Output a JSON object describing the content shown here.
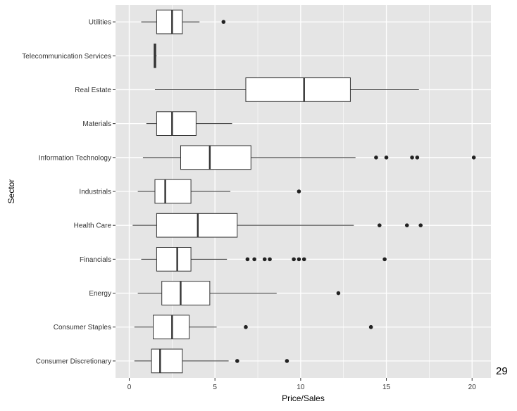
{
  "page": {
    "number": "29"
  },
  "chart_data": {
    "type": "boxplot",
    "orientation": "horizontal",
    "title": "",
    "xlabel": "Price/Sales",
    "ylabel": "Sector",
    "xlim": [
      -0.8,
      21.1
    ],
    "xticks": [
      0,
      5,
      10,
      15,
      20
    ],
    "grid": true,
    "panel_background": "#e5e5e5",
    "grid_color": "#ffffff",
    "box_fill": "#ffffff",
    "line_color": "#333333",
    "outlier_color": "#222222",
    "categories": [
      {
        "name": "Utilities",
        "whisker_low": 0.7,
        "q1": 1.6,
        "median": 2.5,
        "q3": 3.1,
        "whisker_high": 4.1,
        "outliers": [
          5.5
        ]
      },
      {
        "name": "Telecommunication Services",
        "whisker_low": 1.45,
        "q1": 1.45,
        "median": 1.5,
        "q3": 1.55,
        "whisker_high": 1.6,
        "outliers": []
      },
      {
        "name": "Real Estate",
        "whisker_low": 1.5,
        "q1": 6.8,
        "median": 10.2,
        "q3": 12.9,
        "whisker_high": 16.9,
        "outliers": []
      },
      {
        "name": "Materials",
        "whisker_low": 1.0,
        "q1": 1.6,
        "median": 2.5,
        "q3": 3.9,
        "whisker_high": 6.0,
        "outliers": []
      },
      {
        "name": "Information Technology",
        "whisker_low": 0.8,
        "q1": 3.0,
        "median": 4.7,
        "q3": 7.1,
        "whisker_high": 13.2,
        "outliers": [
          14.4,
          15.0,
          16.5,
          16.8,
          20.1
        ]
      },
      {
        "name": "Industrials",
        "whisker_low": 0.5,
        "q1": 1.5,
        "median": 2.1,
        "q3": 3.6,
        "whisker_high": 5.9,
        "outliers": [
          9.9
        ]
      },
      {
        "name": "Health Care",
        "whisker_low": 0.2,
        "q1": 1.6,
        "median": 4.0,
        "q3": 6.3,
        "whisker_high": 13.1,
        "outliers": [
          14.6,
          16.2,
          17.0
        ]
      },
      {
        "name": "Financials",
        "whisker_low": 0.7,
        "q1": 1.6,
        "median": 2.8,
        "q3": 3.6,
        "whisker_high": 5.7,
        "outliers": [
          6.9,
          7.3,
          7.9,
          8.2,
          9.6,
          9.9,
          10.2,
          14.9
        ]
      },
      {
        "name": "Energy",
        "whisker_low": 0.5,
        "q1": 1.9,
        "median": 3.0,
        "q3": 4.7,
        "whisker_high": 8.6,
        "outliers": [
          12.2
        ]
      },
      {
        "name": "Consumer Staples",
        "whisker_low": 0.3,
        "q1": 1.4,
        "median": 2.5,
        "q3": 3.5,
        "whisker_high": 5.1,
        "outliers": [
          6.8,
          14.1
        ]
      },
      {
        "name": "Consumer Discretionary",
        "whisker_low": 0.3,
        "q1": 1.3,
        "median": 1.8,
        "q3": 3.1,
        "whisker_high": 5.8,
        "outliers": [
          6.3,
          9.2
        ]
      }
    ]
  }
}
